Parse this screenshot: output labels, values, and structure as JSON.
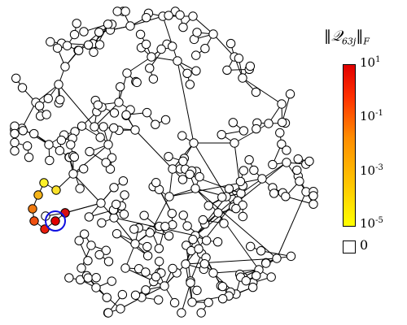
{
  "colorbar": {
    "title": "‖𝒬",
    "subscript": "63j",
    "title_suffix": "‖",
    "title_subscript2": "F",
    "ticks": [
      {
        "base": "10",
        "exp": "1"
      },
      {
        "base": "10",
        "exp": "-1"
      },
      {
        "base": "10",
        "exp": "-3"
      },
      {
        "base": "10",
        "exp": "-5"
      }
    ],
    "zero_label": "0",
    "colors": {
      "low": "#ffff00",
      "mid": "#ff8c00",
      "high": "#e00000",
      "ring": "#1010e0"
    }
  },
  "colored_nodes": [
    {
      "level": "high",
      "color": "#e00000",
      "highlighted": true
    },
    {
      "level": "high",
      "color": "#d81010"
    },
    {
      "level": "high",
      "color": "#e81c0c"
    },
    {
      "level": "mid-high",
      "color": "#f05010"
    },
    {
      "level": "mid",
      "color": "#f07a10"
    },
    {
      "level": "low-mid",
      "color": "#f5b41a"
    },
    {
      "level": "low",
      "color": "#fae12a"
    },
    {
      "level": "low",
      "color": "#fdf028"
    }
  ]
}
